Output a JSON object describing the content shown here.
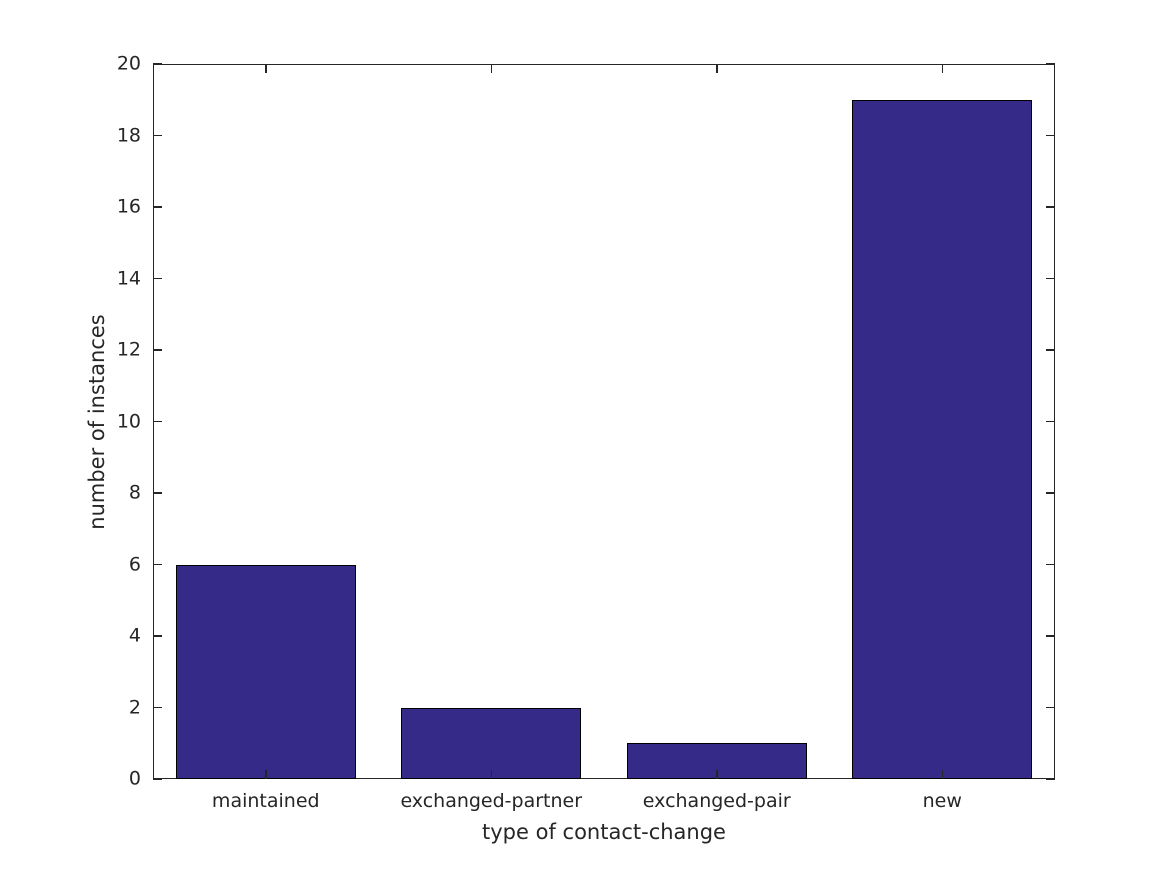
{
  "chart_data": {
    "type": "bar",
    "categories": [
      "maintained",
      "exchanged-partner",
      "exchanged-pair",
      "new"
    ],
    "values": [
      6,
      2,
      1,
      19
    ],
    "title": "",
    "xlabel": "type of contact-change",
    "ylabel": "number of instances",
    "ylim": [
      0,
      20
    ],
    "yticks": [
      0,
      2,
      4,
      6,
      8,
      10,
      12,
      14,
      16,
      18,
      20
    ],
    "grid": false,
    "legend": false,
    "box": true,
    "tick_direction": "in",
    "bar_width_fraction": 0.8,
    "colors": {
      "bar_fill": "#352a87",
      "bar_edge": "#000000",
      "axis": "#262626",
      "text": "#262626",
      "background": "#ffffff"
    }
  }
}
